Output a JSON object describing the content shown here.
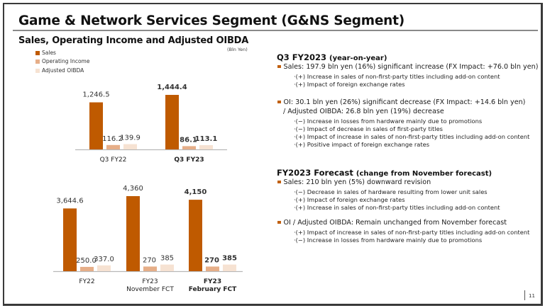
{
  "header": {
    "title": "Game & Network Services Segment (G&NS Segment)",
    "subtitle": "Sales, Operating Income and Adjusted OIBDA",
    "unit": "(Bln Yen)"
  },
  "legend": [
    {
      "label": "Sales",
      "color": "#bf5a00"
    },
    {
      "label": "Operating Income",
      "color": "#e6ae88"
    },
    {
      "label": "Adjusted OIBDA",
      "color": "#f6e2d2"
    }
  ],
  "chart_data": [
    {
      "type": "bar",
      "title": "Sales, Operating Income and Adjusted OIBDA",
      "ylabel": "Bln Yen",
      "categories": [
        "Q3 FY22",
        "Q3 FY23"
      ],
      "category_bold": [
        false,
        true
      ],
      "series": [
        {
          "name": "Sales",
          "values": [
            1246.5,
            1444.4
          ],
          "labels": [
            "1,246.5",
            "1,444.4"
          ]
        },
        {
          "name": "Operating Income",
          "values": [
            116.2,
            86.1
          ],
          "labels": [
            "116.2",
            "86.1"
          ]
        },
        {
          "name": "Adjusted OIBDA",
          "values": [
            139.9,
            113.1
          ],
          "labels": [
            "139.9",
            "113.1"
          ]
        }
      ],
      "ylim": [
        0,
        1444.4
      ],
      "grid": false
    },
    {
      "type": "bar",
      "ylabel": "Bln Yen",
      "categories": [
        "FY22",
        "FY23\nNovember FCT",
        "FY23\nFebruary FCT"
      ],
      "category_lines": [
        [
          "FY22"
        ],
        [
          "FY23",
          "November FCT"
        ],
        [
          "FY23",
          "February FCT"
        ]
      ],
      "category_bold": [
        false,
        false,
        true
      ],
      "series": [
        {
          "name": "Sales",
          "values": [
            3644.6,
            4360,
            4150
          ],
          "labels": [
            "3,644.6",
            "4,360",
            "4,150"
          ]
        },
        {
          "name": "Operating Income",
          "values": [
            250.0,
            270,
            270
          ],
          "labels": [
            "250.0",
            "270",
            "270"
          ]
        },
        {
          "name": "Adjusted OIBDA",
          "values": [
            337.0,
            385,
            385
          ],
          "labels": [
            "337.0",
            "385",
            "385"
          ]
        }
      ],
      "ylim": [
        0,
        4360
      ],
      "grid": false
    }
  ],
  "q3": {
    "heading": "Q3 FY2023",
    "heading_sub": "(year-on-year)",
    "sales": "Sales: 197.9 bln yen (16%) significant increase (FX Impact: +76.0 bln yen)",
    "sales_items": [
      "·(+) Increase in sales of non-first-party titles including add-on content",
      "·(+) Impact of foreign exchange rates"
    ],
    "oi": "OI:  30.1 bln yen (26%) significant decrease  (FX Impact: +14.6 bln yen)",
    "oi_cont": "/ Adjusted OIBDA: 26.8 bln yen (19%) decrease",
    "oi_items": [
      "·(−) Increase in losses from hardware mainly due to promotions",
      "·(−) Impact of decrease in sales of first-party titles",
      "·(+) Impact of increase in sales of non-first-party titles including add-on content",
      "·(+) Positive impact of foreign exchange rates"
    ]
  },
  "forecast": {
    "heading": "FY2023 Forecast",
    "heading_sub": "(change from November forecast)",
    "sales": "Sales: 210 bln yen (5%) downward revision",
    "sales_items": [
      "·(−) Decrease in sales of hardware resulting from lower unit sales",
      "·(+) Impact of foreign exchange rates",
      "·(+) Increase in sales of non-first-party titles including add-on content"
    ],
    "oi": "OI / Adjusted OIBDA: Remain unchanged from November forecast",
    "oi_items": [
      "·(+) Impact of increase in sales of non-first-party titles including add-on content",
      "·(−) Increase in losses from hardware mainly due to promotions"
    ]
  },
  "footer": {
    "page_number": "11"
  }
}
